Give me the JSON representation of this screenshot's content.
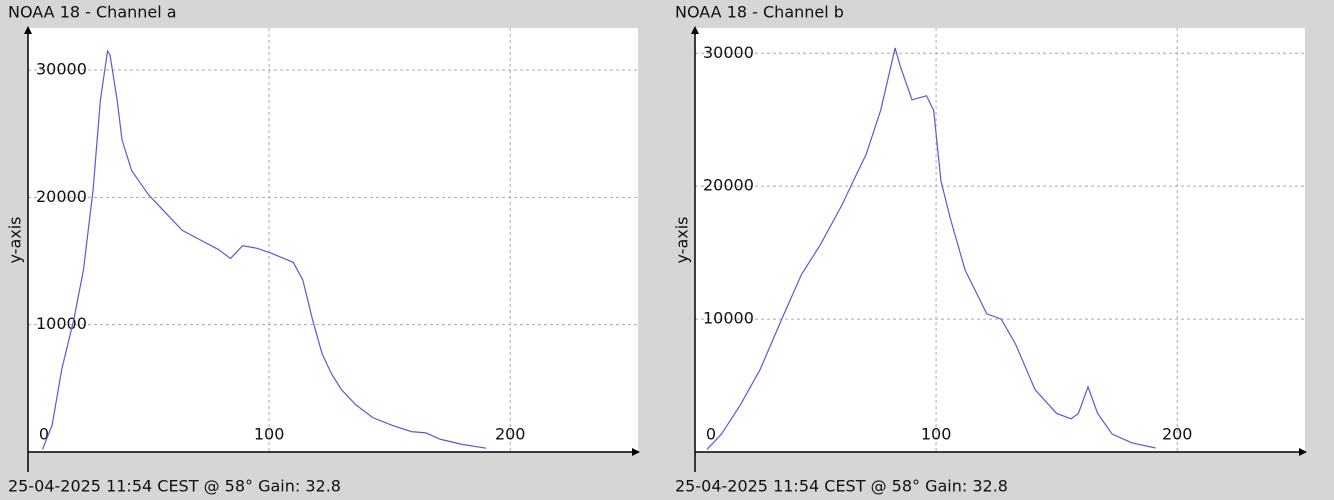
{
  "chart_data": [
    {
      "type": "line",
      "title": "NOAA 18 - Channel a",
      "y_label": "y-axis",
      "footer": "25-04-2025 11:54 CEST @ 58° Gain: 32.8",
      "xlim": [
        0,
        253
      ],
      "ylim": [
        0,
        33300
      ],
      "xticks": [
        0,
        100,
        200
      ],
      "yticks": [
        10000,
        20000,
        30000
      ],
      "grid": true,
      "series": [
        {
          "color": "#5a5ad8",
          "x": [
            6,
            10,
            14,
            19,
            23,
            27,
            30,
            33,
            34,
            37,
            39,
            43,
            50,
            56,
            64,
            72,
            79,
            84,
            89,
            95,
            101,
            110,
            114,
            118,
            122,
            126,
            130,
            136,
            143,
            151,
            159,
            165,
            171,
            180,
            190
          ],
          "values": [
            200,
            2100,
            6500,
            10400,
            14300,
            20600,
            27600,
            31500,
            31200,
            27600,
            24500,
            22100,
            20200,
            19000,
            17400,
            16600,
            15900,
            15200,
            16200,
            16000,
            15600,
            14900,
            13500,
            10400,
            7700,
            6100,
            4900,
            3700,
            2700,
            2100,
            1600,
            1500,
            1000,
            600,
            300
          ]
        }
      ]
    },
    {
      "type": "line",
      "title": "NOAA 18 - Channel b",
      "y_label": "y-axis",
      "footer": "25-04-2025 11:54 CEST @ 58° Gain: 32.8",
      "xlim": [
        0,
        253
      ],
      "ylim": [
        0,
        31900
      ],
      "xticks": [
        0,
        100,
        200
      ],
      "yticks": [
        10000,
        20000,
        30000
      ],
      "grid": true,
      "series": [
        {
          "color": "#5a5ad8",
          "x": [
            5,
            11,
            19,
            27,
            36,
            44,
            52,
            61,
            67,
            71,
            77,
            83,
            85,
            90,
            96,
            99,
            102,
            106,
            112,
            121,
            127,
            133,
            141,
            150,
            156,
            159,
            163,
            167,
            173,
            181,
            191
          ],
          "values": [
            200,
            1350,
            3600,
            6200,
            10000,
            13300,
            15600,
            18600,
            20900,
            22400,
            25700,
            30400,
            29100,
            26500,
            26800,
            25700,
            20400,
            17500,
            13700,
            10400,
            10000,
            8100,
            4700,
            2900,
            2500,
            2900,
            4900,
            2900,
            1350,
            700,
            300
          ]
        }
      ]
    }
  ]
}
